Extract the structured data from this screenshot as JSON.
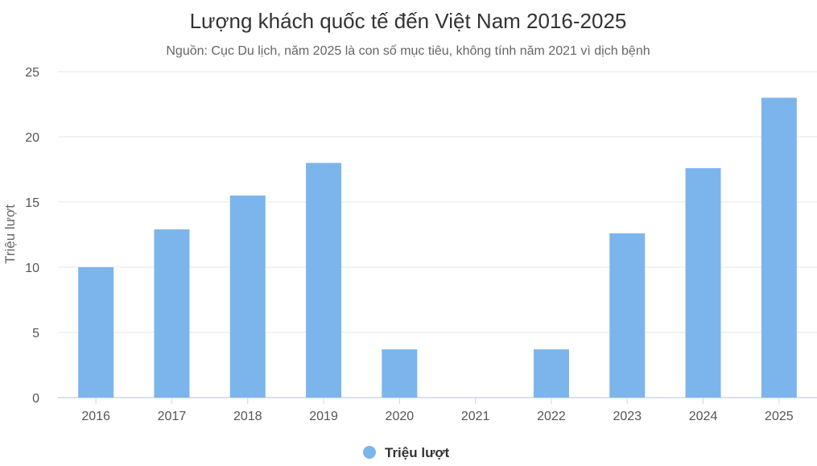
{
  "chart_data": {
    "type": "bar",
    "title": "Lượng khách quốc tế đến Việt Nam 2016-2025",
    "subtitle": "Nguồn: Cục Du lịch, năm 2025 là con số mục tiêu, không tính năm 2021 vì dịch bệnh",
    "categories": [
      "2016",
      "2017",
      "2018",
      "2019",
      "2020",
      "2021",
      "2022",
      "2023",
      "2024",
      "2025"
    ],
    "series": [
      {
        "name": "Triệu lượt",
        "color": "#7cb5ec",
        "values": [
          10.0,
          12.9,
          15.5,
          18.0,
          3.7,
          null,
          3.7,
          12.6,
          17.6,
          23.0
        ]
      }
    ],
    "ylabel": "Triệu lượt",
    "xlabel": "",
    "ylim": [
      0,
      25
    ],
    "yticks": [
      0,
      5,
      10,
      15,
      20,
      25
    ],
    "grid": true,
    "legend_position": "bottom-center"
  }
}
